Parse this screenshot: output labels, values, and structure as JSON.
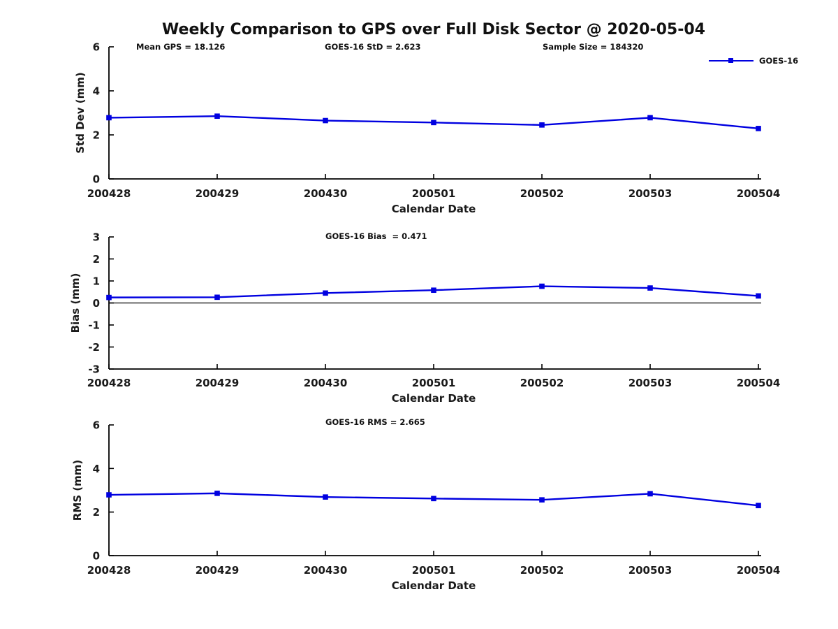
{
  "title": "Weekly Comparison to GPS over Full Disk Sector @ 2020-05-04",
  "annotations": {
    "mean_gps": "Mean GPS = 18.126",
    "std": "GOES-16 StD = 2.623",
    "sample_size": "Sample Size = 184320",
    "bias": "GOES-16 Bias  = 0.471",
    "rms": "GOES-16 RMS = 2.665"
  },
  "legend": {
    "label": "GOES-16"
  },
  "colors": {
    "line": "#0000e0",
    "axis": "#000000",
    "text": "#111111"
  },
  "chart_data": [
    {
      "type": "line",
      "categories": [
        "200428",
        "200429",
        "200430",
        "200501",
        "200502",
        "200503",
        "200504"
      ],
      "series": [
        {
          "name": "GOES-16",
          "values": [
            2.78,
            2.85,
            2.65,
            2.56,
            2.45,
            2.78,
            2.29
          ]
        }
      ],
      "xlabel": "Calendar Date",
      "ylabel": "Std Dev (mm)",
      "ylim": [
        0,
        6
      ],
      "yticks": [
        0,
        2,
        4,
        6
      ],
      "zero_line": false,
      "grid": false,
      "legend_position": "top-right",
      "marker": "square"
    },
    {
      "type": "line",
      "categories": [
        "200428",
        "200429",
        "200430",
        "200501",
        "200502",
        "200503",
        "200504"
      ],
      "series": [
        {
          "name": "GOES-16",
          "values": [
            0.25,
            0.26,
            0.45,
            0.58,
            0.76,
            0.68,
            0.32
          ]
        }
      ],
      "xlabel": "Calendar Date",
      "ylabel": "Bias (mm)",
      "ylim": [
        -3,
        3
      ],
      "yticks": [
        -3,
        -2,
        -1,
        0,
        1,
        2,
        3
      ],
      "zero_line": true,
      "grid": false,
      "legend_position": "none",
      "marker": "square"
    },
    {
      "type": "line",
      "categories": [
        "200428",
        "200429",
        "200430",
        "200501",
        "200502",
        "200503",
        "200504"
      ],
      "series": [
        {
          "name": "GOES-16",
          "values": [
            2.79,
            2.86,
            2.69,
            2.62,
            2.56,
            2.84,
            2.3
          ]
        }
      ],
      "xlabel": "Calendar Date",
      "ylabel": "RMS (mm)",
      "ylim": [
        0,
        6
      ],
      "yticks": [
        0,
        2,
        4,
        6
      ],
      "zero_line": false,
      "grid": false,
      "legend_position": "none",
      "marker": "square"
    }
  ]
}
